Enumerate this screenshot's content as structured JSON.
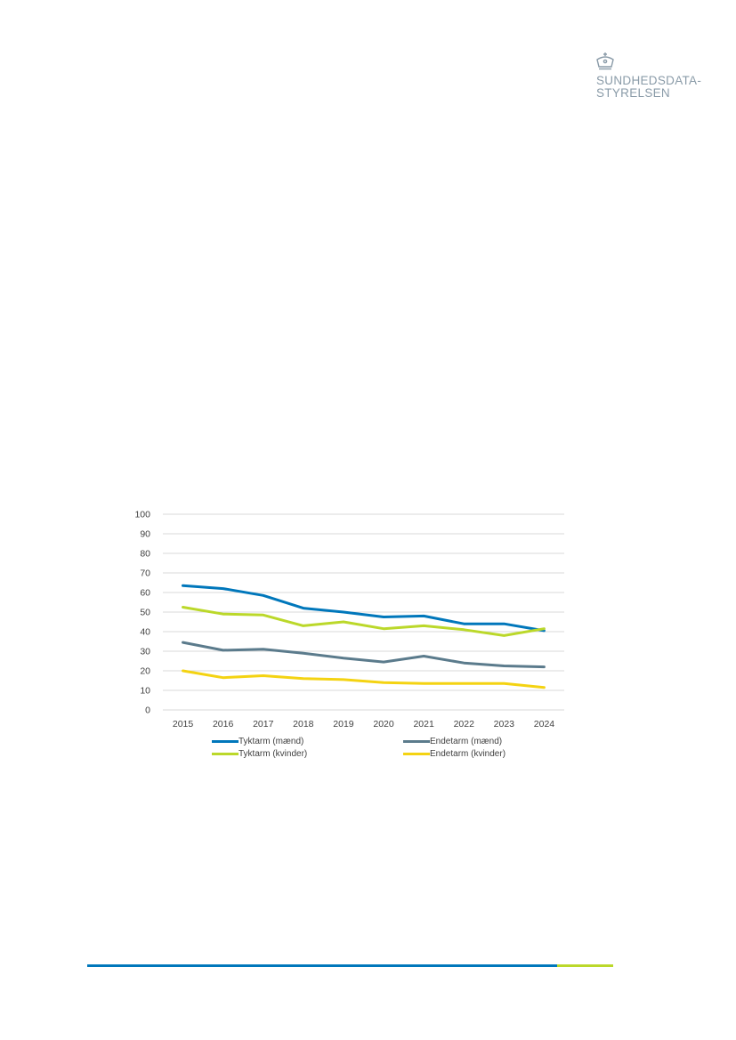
{
  "logo": {
    "line1": "SUNDHEDSDATA-",
    "line2": "STYRELSEN",
    "color": "#8a9ba8"
  },
  "colors": {
    "footer_blue": "#0077bb",
    "footer_green": "#bbd82a",
    "grid": "#d9d9d9",
    "tick_text": "#404040"
  },
  "chart_data": {
    "type": "line",
    "title": "",
    "xlabel": "",
    "ylabel": "",
    "ylim": [
      0,
      100
    ],
    "yticks": [
      "0",
      "10",
      "20",
      "30",
      "40",
      "50",
      "60",
      "70",
      "80",
      "90",
      "100"
    ],
    "x": [
      "2015",
      "2016",
      "2017",
      "2018",
      "2019",
      "2020",
      "2021",
      "2022",
      "2023",
      "2024"
    ],
    "grid": true,
    "legend_position": "bottom",
    "series": [
      {
        "name": "Tyktarm (mænd)",
        "color": "#0077bb",
        "values": [
          63.5,
          62,
          58.5,
          52,
          50,
          47.5,
          48,
          44,
          44,
          40.5
        ]
      },
      {
        "name": "Endetarm (mænd)",
        "color": "#5b7b8c",
        "values": [
          34.5,
          30.5,
          31,
          29,
          26.5,
          24.5,
          27.5,
          24,
          22.5,
          22
        ]
      },
      {
        "name": "Tyktarm (kvinder)",
        "color": "#bbd82a",
        "values": [
          52.5,
          49,
          48.5,
          43,
          45,
          41.5,
          43,
          41,
          38,
          41.5
        ]
      },
      {
        "name": "Endetarm (kvinder)",
        "color": "#f4d312",
        "values": [
          20,
          16.5,
          17.5,
          16,
          15.5,
          14,
          13.5,
          13.5,
          13.5,
          11.5
        ]
      }
    ]
  }
}
